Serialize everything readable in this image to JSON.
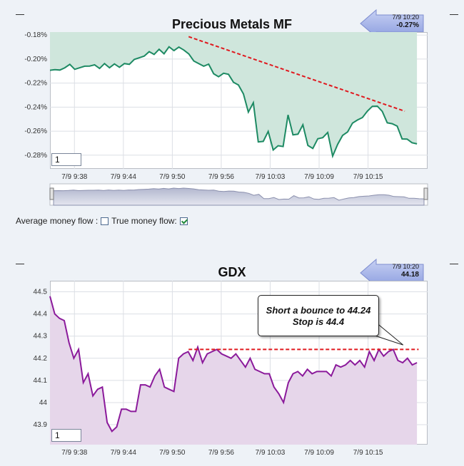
{
  "colors": {
    "accent_green": "#1d8a63",
    "area_green": "#cfe6dc",
    "accent_purple": "#8b1a9b",
    "area_purple": "#e6d6ea",
    "trend_red": "#e0181e",
    "badge_blue": "#a9b7ea"
  },
  "controls": {
    "avg_label": "Average money flow :",
    "avg_checked": false,
    "true_label": "True money flow:",
    "true_checked": true
  },
  "chart_data": [
    {
      "type": "area",
      "title": "Precious Metals MF",
      "range_input": "1",
      "badge": {
        "time": "7/9 10:20",
        "value": "-0.27%",
        "icon": "left-arrow-icon"
      },
      "y_ticks": [
        -0.18,
        -0.2,
        -0.22,
        -0.24,
        -0.26,
        -0.28
      ],
      "y_tick_labels": [
        "-0.18%",
        "-0.20%",
        "-0.22%",
        "-0.24%",
        "-0.26%",
        "-0.28%"
      ],
      "ylim": [
        -0.2914,
        -0.1775
      ],
      "x_ticks": [
        3,
        9,
        15,
        21,
        27,
        33,
        39
      ],
      "x_tick_labels": [
        "7/9 9:38",
        "7/9 9:44",
        "7/9 9:50",
        "7/9 9:56",
        "7/9 10:03",
        "7/9 10:09",
        "7/9 10:15"
      ],
      "xlim": [
        0,
        46.3
      ],
      "values": [
        -0.2093,
        -0.2088,
        -0.2091,
        -0.2072,
        -0.2044,
        -0.2085,
        -0.2072,
        -0.2059,
        -0.2058,
        -0.2048,
        -0.2078,
        -0.2037,
        -0.2072,
        -0.204,
        -0.2068,
        -0.2037,
        -0.2044,
        -0.2003,
        -0.1989,
        -0.1975,
        -0.1938,
        -0.1961,
        -0.1918,
        -0.1956,
        -0.1898,
        -0.1929,
        -0.19,
        -0.1925,
        -0.1957,
        -0.2016,
        -0.2038,
        -0.2059,
        -0.2042,
        -0.2122,
        -0.2147,
        -0.2118,
        -0.2127,
        -0.2193,
        -0.2216,
        -0.229,
        -0.2441,
        -0.2363,
        -0.269,
        -0.2685,
        -0.2602,
        -0.2757,
        -0.2721,
        -0.2728,
        -0.2465,
        -0.2631,
        -0.2625,
        -0.2547,
        -0.2719,
        -0.2744,
        -0.2663,
        -0.2654,
        -0.2611,
        -0.2808,
        -0.271,
        -0.2636,
        -0.2607,
        -0.2533,
        -0.2507,
        -0.2487,
        -0.2433,
        -0.2393,
        -0.2392,
        -0.2435,
        -0.2531,
        -0.2538,
        -0.2558,
        -0.2665,
        -0.2666,
        -0.2696,
        -0.2706
      ]
    },
    {
      "type": "area",
      "title": "GDX",
      "range_input": "1",
      "badge": {
        "time": "7/9 10:20",
        "value": "44.18",
        "icon": "left-arrow-icon"
      },
      "y_ticks": [
        43.9,
        44,
        44.1,
        44.2,
        44.3,
        44.4,
        44.5
      ],
      "y_tick_labels": [
        "43.9",
        "44",
        "44.1",
        "44.2",
        "44.3",
        "44.4",
        "44.5"
      ],
      "ylim": [
        43.81,
        44.55
      ],
      "x_ticks": [
        3,
        9,
        15,
        21,
        27,
        33,
        39
      ],
      "x_tick_labels": [
        "7/9 9:38",
        "7/9 9:44",
        "7/9 9:50",
        "7/9 9:56",
        "7/9 10:03",
        "7/9 10:09",
        "7/9 10:15"
      ],
      "xlim": [
        0,
        46.3
      ],
      "values": [
        44.48,
        44.4,
        44.38,
        44.37,
        44.27,
        44.2,
        44.24,
        44.09,
        44.13,
        44.03,
        44.06,
        44.07,
        43.91,
        43.87,
        43.89,
        43.97,
        43.97,
        43.96,
        43.96,
        44.08,
        44.08,
        44.07,
        44.12,
        44.15,
        44.07,
        44.06,
        44.05,
        44.2,
        44.22,
        44.23,
        44.19,
        44.25,
        44.18,
        44.22,
        44.23,
        44.24,
        44.22,
        44.21,
        44.2,
        44.22,
        44.19,
        44.16,
        44.2,
        44.15,
        44.14,
        44.13,
        44.13,
        44.07,
        44.04,
        44.0,
        44.09,
        44.13,
        44.14,
        44.12,
        44.15,
        44.13,
        44.14,
        44.14,
        44.14,
        44.12,
        44.17,
        44.16,
        44.17,
        44.19,
        44.17,
        44.19,
        44.16,
        44.23,
        44.19,
        44.24,
        44.21,
        44.23,
        44.24,
        44.19,
        44.18,
        44.2,
        44.17,
        44.18
      ]
    }
  ],
  "annotations": {
    "mf_trend": {
      "x1": 17,
      "y1": -0.1813,
      "x2": 43.5,
      "y2": -0.2434
    },
    "gdx_resistance": {
      "x1": 17,
      "y1": 44.24,
      "x2": 45.2,
      "y2": 44.24
    },
    "callout_lines": [
      "Short a bounce to 44.24",
      "Stop is 44.4"
    ],
    "callout_pointer": {
      "x": 43.3,
      "y": 44.26
    }
  }
}
